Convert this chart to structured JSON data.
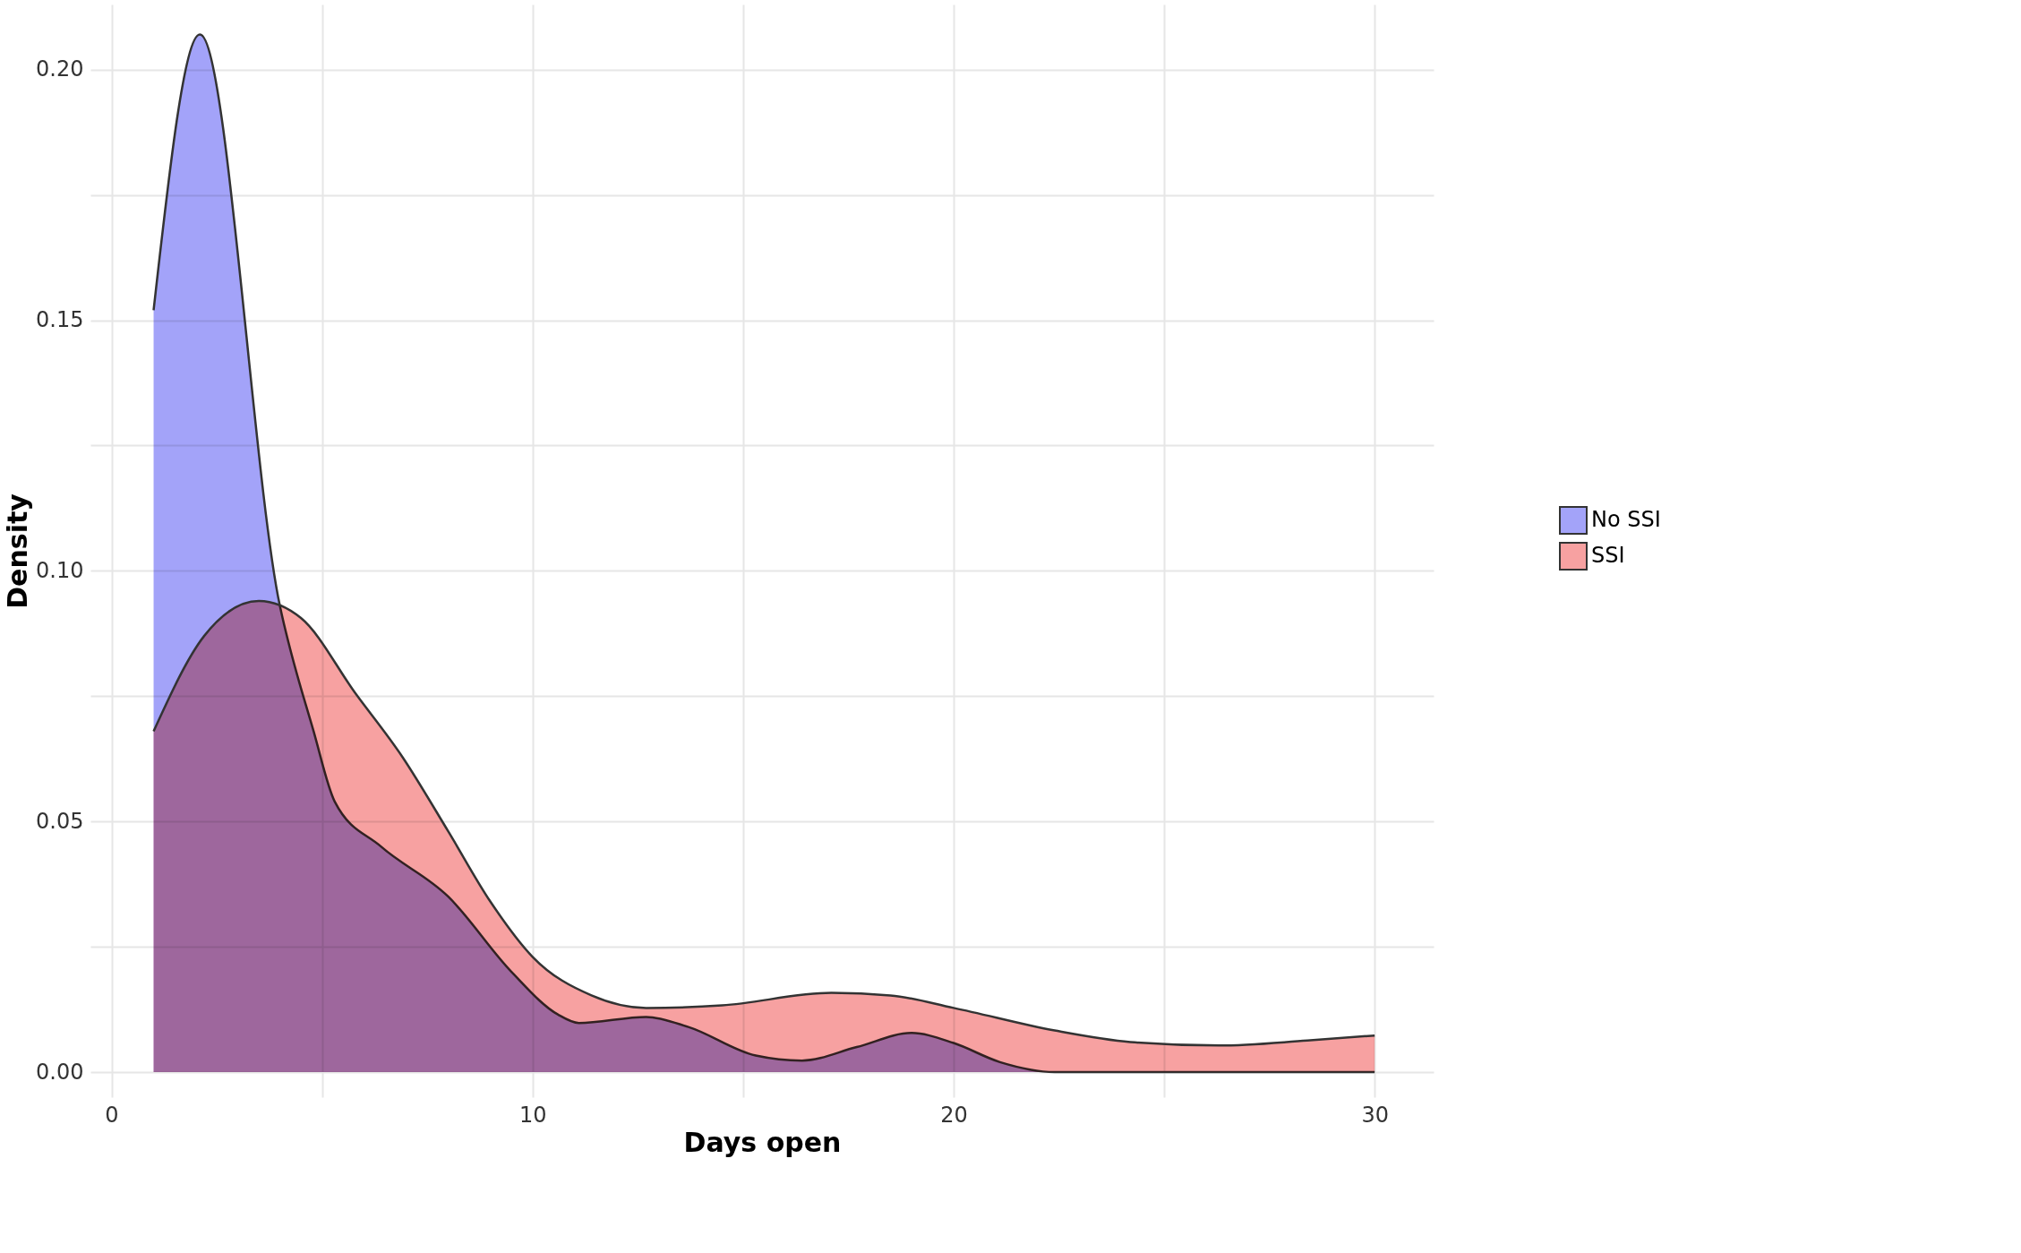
{
  "chart_data": {
    "type": "area",
    "xlabel": "Days open",
    "ylabel": "Density",
    "legend": "right",
    "grid": true,
    "xlim": [
      -0.5,
      31.4
    ],
    "ylim": [
      -0.005,
      0.213
    ],
    "xticks": [
      0,
      {
        "value": 5,
        "label": null
      },
      10,
      {
        "value": 15,
        "label": null
      },
      20,
      {
        "value": 25,
        "label": null
      },
      30
    ],
    "yticks": [
      {
        "value": 0,
        "label": "0.00"
      },
      {
        "value": 0.025,
        "label": null
      },
      {
        "value": 0.05,
        "label": "0.05"
      },
      {
        "value": 0.075,
        "label": null
      },
      {
        "value": 0.1,
        "label": "0.10"
      },
      {
        "value": 0.125,
        "label": null
      },
      {
        "value": 0.15,
        "label": "0.15"
      },
      {
        "value": 0.175,
        "label": null
      },
      {
        "value": 0.2,
        "label": "0.20"
      }
    ],
    "series": [
      {
        "name": "No SSI",
        "color": "#a3a3f9",
        "x": [
          1,
          2.1,
          4,
          4.8,
          5.3,
          6.4,
          8,
          9.5,
          10.6,
          11.1,
          12.7,
          13.7,
          15.3,
          16.4,
          17.7,
          19,
          20,
          21.1,
          22.4,
          30
        ],
        "values": [
          0.152,
          0.207,
          0.093,
          0.068,
          0.054,
          0.045,
          0.035,
          0.02,
          0.0115,
          0.0098,
          0.011,
          0.009,
          0.0033,
          0.0023,
          0.005,
          0.0078,
          0.0058,
          0.002,
          0,
          0
        ]
      },
      {
        "name": "SSI",
        "color": "#f7a1a1",
        "x": [
          1,
          2.2,
          3.5,
          4.5,
          5.8,
          6.9,
          8,
          9,
          10,
          11.4,
          12.7,
          14.5,
          17.1,
          18.5,
          20,
          22.4,
          24.2,
          26.3,
          28.4,
          30
        ],
        "values": [
          0.068,
          0.087,
          0.094,
          0.0906,
          0.0755,
          0.063,
          0.048,
          0.034,
          0.023,
          0.0153,
          0.0128,
          0.0133,
          0.0158,
          0.0153,
          0.0128,
          0.0083,
          0.006,
          0.0053,
          0.0063,
          0.0073
        ]
      }
    ]
  }
}
